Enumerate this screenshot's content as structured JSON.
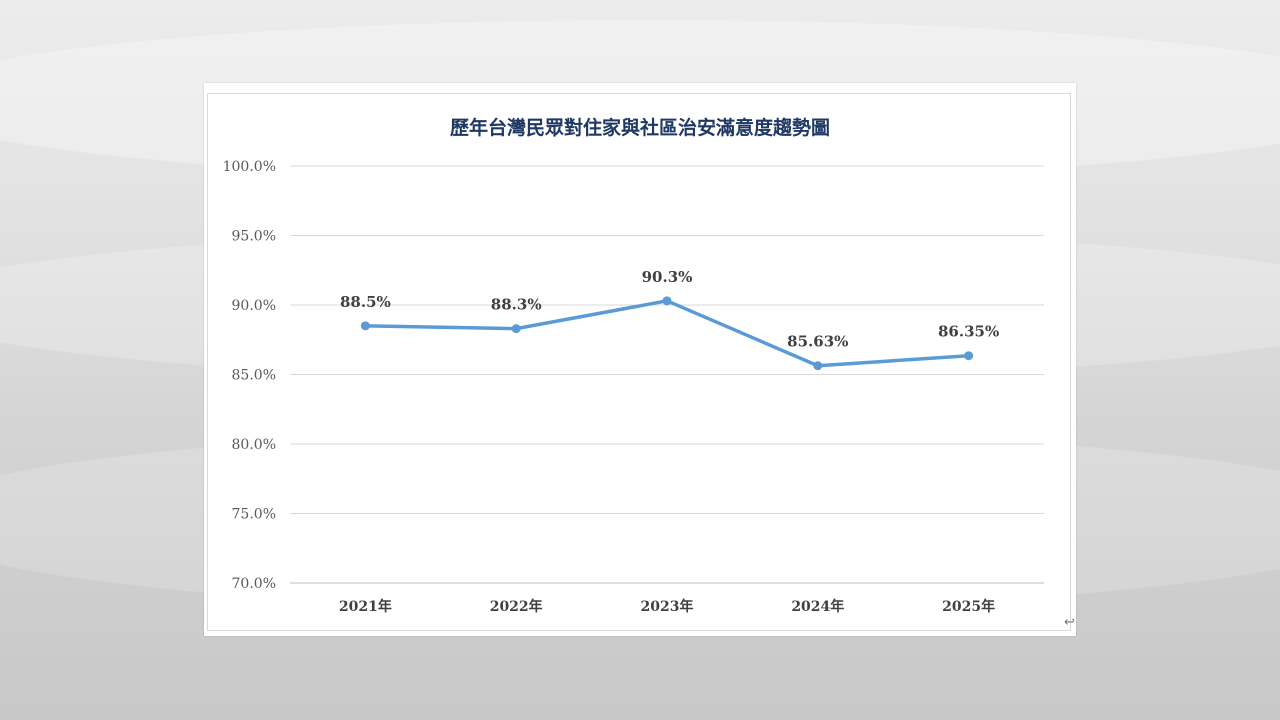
{
  "chart_data": {
    "type": "line",
    "title": "歷年台灣民眾對住家與社區治安滿意度趨勢圖",
    "categories": [
      "2021年",
      "2022年",
      "2023年",
      "2024年",
      "2025年"
    ],
    "series": [
      {
        "values": [
          88.5,
          88.3,
          90.3,
          85.63,
          86.35
        ]
      }
    ],
    "data_labels": [
      "88.5%",
      "88.3%",
      "90.3%",
      "85.63%",
      "86.35%"
    ],
    "ylim": [
      70,
      100
    ],
    "yticks": [
      100,
      95,
      90,
      85,
      80,
      75,
      70
    ],
    "ytick_labels": [
      "100.0%",
      "95.0%",
      "90.0%",
      "85.0%",
      "80.0%",
      "75.0%",
      "70.0%"
    ],
    "grid": true,
    "legend": "none",
    "colors": {
      "line": "#5b9bd5",
      "title": "#1f3864",
      "grid": "#d9d9d9"
    }
  },
  "corner_mark": "↩"
}
